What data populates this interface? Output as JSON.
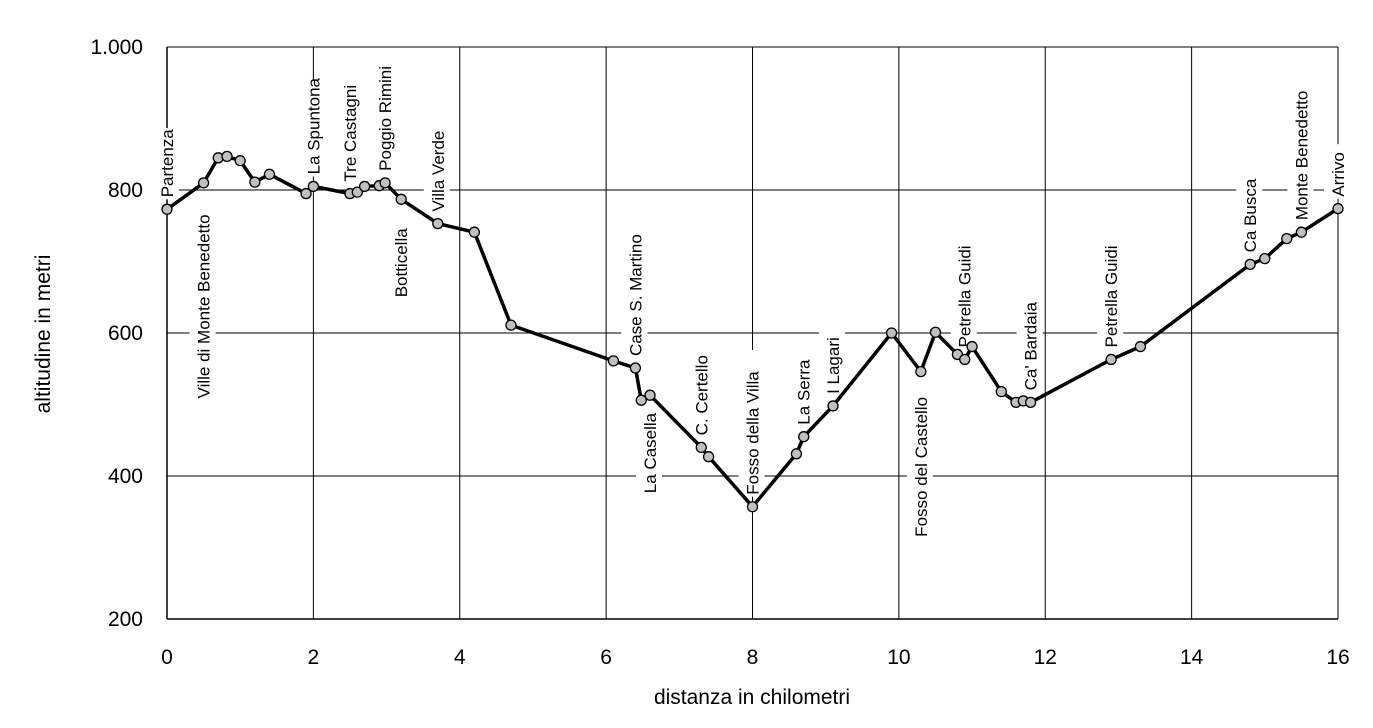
{
  "chart_data": {
    "type": "line",
    "xlabel": "distanza in chilometri",
    "ylabel": "altitudine  in metri",
    "xlim": [
      0,
      16
    ],
    "ylim": [
      200,
      1000
    ],
    "xticks": [
      0,
      2,
      4,
      6,
      8,
      10,
      12,
      14,
      16
    ],
    "xtick_labels": [
      "0",
      "2",
      "4",
      "6",
      "8",
      "10",
      "12",
      "14",
      "16"
    ],
    "yticks": [
      200,
      400,
      600,
      800,
      1000
    ],
    "ytick_labels": [
      "200",
      "400",
      "600",
      "800",
      "1.000"
    ],
    "grid": true,
    "legend": false,
    "series": [
      {
        "x": [
          0,
          0.5,
          0.7,
          0.82,
          1.0,
          1.2,
          1.4,
          1.9,
          2.0,
          2.5,
          2.6,
          2.7,
          2.9,
          2.98,
          3.2,
          3.7,
          4.2,
          4.7,
          6.1,
          6.4,
          6.48,
          6.6,
          7.3,
          7.4,
          8.0,
          8.6,
          8.7,
          9.1,
          9.9,
          10.3,
          10.5,
          10.8,
          10.9,
          11.0,
          11.4,
          11.6,
          11.7,
          11.8,
          12.9,
          13.3,
          14.8,
          15.0,
          15.3,
          15.5,
          16.0
        ],
        "y": [
          773,
          810,
          845,
          847,
          841,
          811,
          822,
          795,
          805,
          795,
          797,
          805,
          806,
          810,
          787,
          753,
          741,
          611,
          561,
          551,
          506,
          513,
          440,
          427,
          357,
          431,
          455,
          498,
          600,
          546,
          601,
          570,
          563,
          581,
          518,
          503,
          505,
          503,
          563,
          581,
          696,
          704,
          732,
          741,
          774
        ]
      }
    ],
    "annotations": [
      {
        "text": "Partenza",
        "x": 0,
        "y": 773,
        "pos": "above"
      },
      {
        "text": "Ville di Monte Benedetto",
        "x": 0.5,
        "y": 810,
        "pos": "below"
      },
      {
        "text": "La Spuntona",
        "x": 2.0,
        "y": 805,
        "pos": "above"
      },
      {
        "text": "Tre Castagni",
        "x": 2.5,
        "y": 795,
        "pos": "above"
      },
      {
        "text": "Poggio Rimini",
        "x": 2.98,
        "y": 810,
        "pos": "above"
      },
      {
        "text": "Botticella",
        "x": 3.2,
        "y": 787,
        "pos": "below"
      },
      {
        "text": "Villa Verde",
        "x": 3.7,
        "y": 753,
        "pos": "above"
      },
      {
        "text": "Case S. Martino",
        "x": 6.4,
        "y": 551,
        "pos": "above"
      },
      {
        "text": "La Casella",
        "x": 6.6,
        "y": 513,
        "pos": "below"
      },
      {
        "text": "C. Certello",
        "x": 7.3,
        "y": 440,
        "pos": "above"
      },
      {
        "text": "Fosso della Villa",
        "x": 8.0,
        "y": 357,
        "pos": "above"
      },
      {
        "text": "La Serra",
        "x": 8.7,
        "y": 455,
        "pos": "above"
      },
      {
        "text": "I Lagari",
        "x": 9.1,
        "y": 498,
        "pos": "above"
      },
      {
        "text": "Fosso del Castello",
        "x": 10.3,
        "y": 546,
        "pos": "below"
      },
      {
        "text": "Petrella Guidi",
        "x": 10.9,
        "y": 563,
        "pos": "above"
      },
      {
        "text": "Ca' Bardaia",
        "x": 11.8,
        "y": 503,
        "pos": "above"
      },
      {
        "text": "Petrella Guidi",
        "x": 12.9,
        "y": 563,
        "pos": "above"
      },
      {
        "text": "Ca Busca",
        "x": 14.8,
        "y": 696,
        "pos": "above"
      },
      {
        "text": "Monte Benedetto",
        "x": 15.5,
        "y": 741,
        "pos": "above"
      },
      {
        "text": "Arrivo",
        "x": 16.0,
        "y": 774,
        "pos": "above"
      }
    ]
  }
}
